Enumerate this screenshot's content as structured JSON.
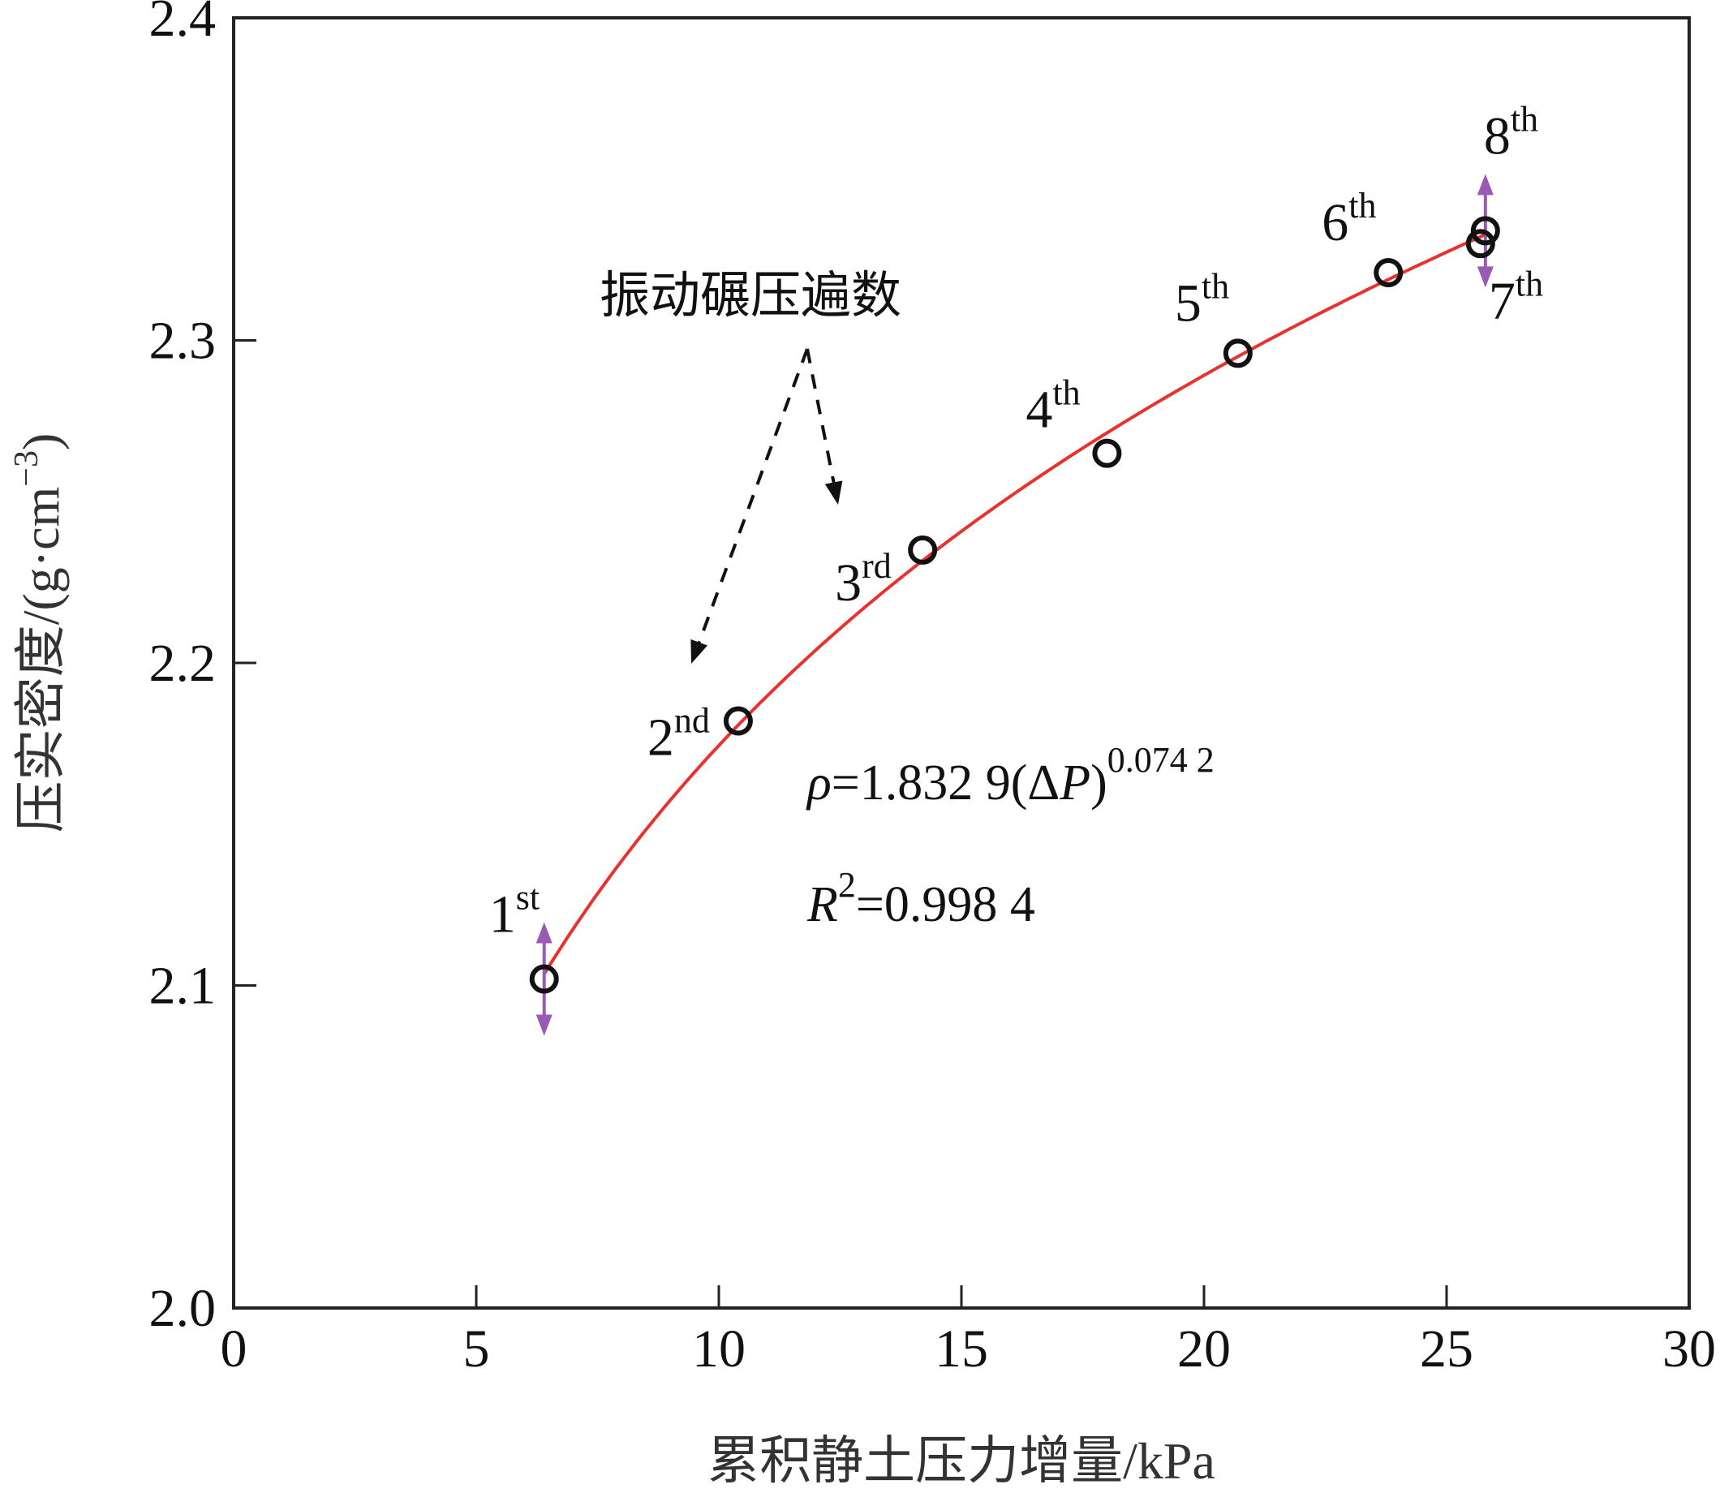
{
  "chart_data": {
    "type": "scatter",
    "title": "",
    "xlabel": "累积静土压力增量/kPa",
    "ylabel": "压实密度/(g·cm",
    "ylabel_unit_exponent": "−3",
    "ylabel_close": ")",
    "xlim": [
      0,
      30
    ],
    "ylim": [
      2.0,
      2.4
    ],
    "xticks": [
      0,
      5,
      10,
      15,
      20,
      25,
      30
    ],
    "xtick_labels": [
      "0",
      "5",
      "10",
      "15",
      "20",
      "25",
      "30"
    ],
    "yticks": [
      2.0,
      2.1,
      2.2,
      2.3,
      2.4
    ],
    "ytick_labels": [
      "2.0",
      "2.1",
      "2.2",
      "2.3",
      "2.4"
    ],
    "grid": false,
    "legend": "none",
    "points": [
      {
        "x": 6.4,
        "y": 2.102,
        "label_base": "1",
        "label_sup": "st"
      },
      {
        "x": 10.4,
        "y": 2.182,
        "label_base": "2",
        "label_sup": "nd"
      },
      {
        "x": 14.2,
        "y": 2.235,
        "label_base": "3",
        "label_sup": "rd"
      },
      {
        "x": 18.0,
        "y": 2.265,
        "label_base": "4",
        "label_sup": "th"
      },
      {
        "x": 20.7,
        "y": 2.296,
        "label_base": "5",
        "label_sup": "th"
      },
      {
        "x": 23.8,
        "y": 2.321,
        "label_base": "6",
        "label_sup": "th"
      },
      {
        "x": 25.7,
        "y": 2.33,
        "label_base": "7",
        "label_sup": "th"
      },
      {
        "x": 25.8,
        "y": 2.334,
        "label_base": "8",
        "label_sup": "th"
      }
    ],
    "fit": {
      "model": "power",
      "a": 1.8329,
      "b": 0.0742,
      "x_range": [
        6.4,
        25.8
      ],
      "color": "#e8322f"
    },
    "equation": {
      "rho": "ρ",
      "eq_mid": "=1.832 9(Δ",
      "P": "P",
      "close": ")",
      "exponent": "0.074 2"
    },
    "r_squared": {
      "R": "R",
      "exponent": "2",
      "value": "=0.998 4"
    },
    "annotation": "振动碾压遍数",
    "colors": {
      "marker": "#111111",
      "fit_line": "#e8322f",
      "arrow": "#9b59b6",
      "axis": "#222222"
    }
  }
}
